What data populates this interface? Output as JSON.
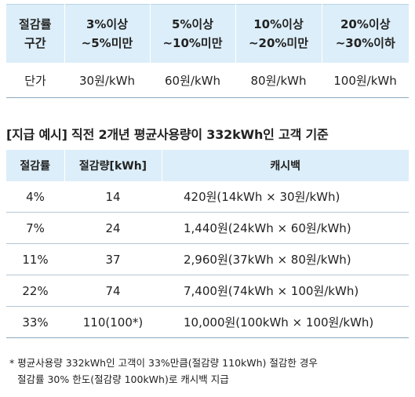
{
  "rate_table": {
    "headers": [
      [
        "절감률",
        "구간"
      ],
      [
        "3%이상",
        "~5%미만"
      ],
      [
        "5%이상",
        "~10%미만"
      ],
      [
        "10%이상",
        "~20%미만"
      ],
      [
        "20%이상",
        "~30%이하"
      ]
    ],
    "row": [
      "단가",
      "30원/kWh",
      "60원/kWh",
      "80원/kWh",
      "100원/kWh"
    ]
  },
  "example": {
    "title": "[지급 예시] 직전 2개년 평균사용량이 332kWh인 고객 기준",
    "headers": [
      "절감률",
      "절감량[kWh]",
      "캐시백"
    ],
    "rows": [
      [
        "4%",
        "14",
        "420원(14kWh × 30원/kWh)"
      ],
      [
        "7%",
        "24",
        "1,440원(24kWh × 60원/kWh)"
      ],
      [
        "11%",
        "37",
        "2,960원(37kWh × 80원/kWh)"
      ],
      [
        "22%",
        "74",
        "7,400원(74kWh × 100원/kWh)"
      ],
      [
        "33%",
        "110(100*)",
        "10,000원(100kWh × 100원/kWh)"
      ]
    ]
  },
  "footnote": {
    "line1": "* 평균사용량 332kWh인 고객이 33%만큼(절감량 110kWh) 절감한 경우",
    "line2": "절감률 30% 한도(절감량 100kWh)로 캐시백 지급"
  },
  "colors": {
    "header_bg": "#dceef9",
    "row_border": "#8fa9bf"
  }
}
